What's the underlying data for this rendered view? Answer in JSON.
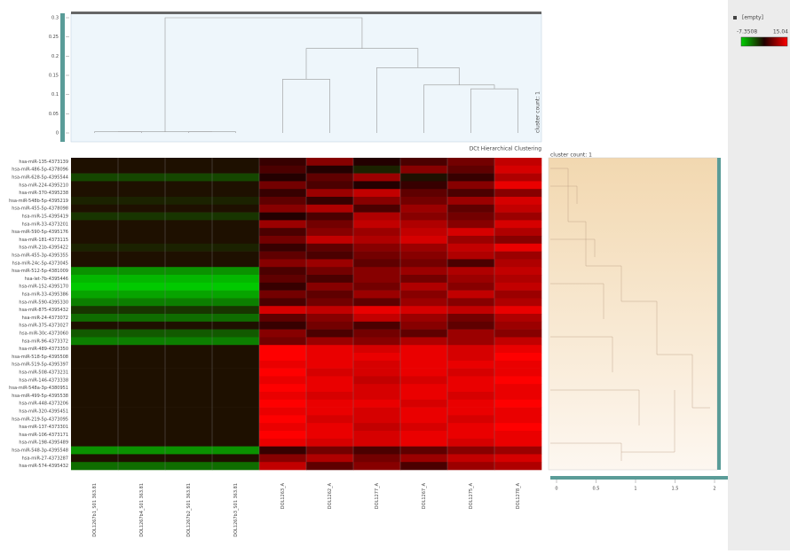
{
  "chart_data": {
    "type": "heatmap",
    "title": "DCt Hierarchical Clustering",
    "legend_label": "[empty]",
    "color_scale": {
      "min": -7.3508,
      "max": 15.04,
      "low_color": "#00d000",
      "mid_color": "#200000",
      "high_color": "#ff0000"
    },
    "columns": [
      "DOL1267b1_S01 363.81",
      "DOL1267b4_S01 363.81",
      "DOL1267b2_S01 363.81",
      "DOL1267b3_S01 363.81",
      "DOL1263_A",
      "DOL1262_A",
      "DOL1277_A",
      "DOL1267_A",
      "DOL1275_A",
      "DOL1278_A"
    ],
    "rows": [
      "hsa-miR-135-4373139",
      "hsa-miR-486-5p-4378096",
      "hsa-miR-628-5p-4395544",
      "hsa-miR-224-4395210",
      "hsa-miR-370-4395238",
      "hsa-miR-548b-5p-4395219",
      "hsa-miR-455-5p-4378098",
      "hsa-miR-15-4395419",
      "hsa-miR-33-4373201",
      "hsa-miR-590-5p-4395176",
      "hsa-miR-181-4373115",
      "hsa-miR-21b-4395422",
      "hsa-miR-455-3p-4395355",
      "hsa-miR-24c-5p-4373045",
      "hsa-miR-512-5p-4381009",
      "hsa-let-7b-4395446",
      "hsa-miR-152-4395170",
      "hsa-miR-33-4395386",
      "hsa-miR-590-4395330",
      "hsa-miR-875-4395432",
      "hsa-miR-24-4373072",
      "hsa-miR-375-4373027",
      "hsa-miR-30c-4373060",
      "hsa-miR-96-4373372",
      "hsa-miR-489-4373350",
      "hsa-miR-518-5p-4395508",
      "hsa-miR-519-5p-4395397",
      "hsa-miR-508-4373231",
      "hsa-miR-146-4373338",
      "hsa-miR-548a-3p-4380951",
      "hsa-miR-499-5p-4395538",
      "hsa-miR-448-4373206",
      "hsa-miR-320-4395451",
      "hsa-miR-219-5p-4373095",
      "hsa-miR-137-4373301",
      "hsa-miR-106-4373171",
      "hsa-miR-198-4395489",
      "hsa-miR-548-3p-4395548",
      "hsa-miR-27-4373287",
      "hsa-miR-574-4395432"
    ],
    "values": [
      [
        3,
        3,
        3,
        3,
        5,
        9,
        4,
        6,
        8,
        12
      ],
      [
        3,
        3,
        3,
        3,
        6,
        4,
        2,
        9,
        7,
        13
      ],
      [
        0,
        0,
        0,
        0,
        4,
        7,
        10,
        3,
        5,
        11
      ],
      [
        3,
        3,
        3,
        3,
        8,
        6,
        4,
        5,
        9,
        14
      ],
      [
        3,
        3,
        3,
        3,
        5,
        10,
        12,
        7,
        6,
        9
      ],
      [
        2,
        2,
        2,
        2,
        7,
        5,
        9,
        8,
        10,
        13
      ],
      [
        3,
        3,
        3,
        3,
        9,
        11,
        6,
        10,
        7,
        12
      ],
      [
        1,
        1,
        1,
        1,
        4,
        6,
        11,
        9,
        8,
        10
      ],
      [
        3,
        3,
        3,
        3,
        10,
        8,
        12,
        11,
        9,
        13
      ],
      [
        3,
        3,
        3,
        3,
        6,
        9,
        10,
        12,
        13,
        11
      ],
      [
        3,
        3,
        3,
        3,
        8,
        12,
        11,
        13,
        10,
        9
      ],
      [
        2,
        2,
        2,
        2,
        5,
        7,
        9,
        10,
        12,
        14
      ],
      [
        3,
        3,
        3,
        3,
        7,
        6,
        8,
        9,
        11,
        10
      ],
      [
        3,
        3,
        3,
        3,
        9,
        10,
        7,
        8,
        6,
        11
      ],
      [
        -4,
        -4,
        -4,
        -4,
        6,
        8,
        9,
        10,
        11,
        12
      ],
      [
        -6,
        -6,
        -6,
        -6,
        7,
        6,
        9,
        8,
        10,
        11
      ],
      [
        -7,
        -7,
        -7,
        -7,
        5,
        9,
        8,
        11,
        9,
        12
      ],
      [
        -5,
        -5,
        -5,
        -5,
        8,
        7,
        10,
        9,
        12,
        10
      ],
      [
        -3,
        -3,
        -3,
        -3,
        6,
        8,
        7,
        10,
        9,
        11
      ],
      [
        1,
        1,
        1,
        1,
        13,
        12,
        14,
        13,
        12,
        14
      ],
      [
        -2,
        -2,
        -2,
        -2,
        7,
        9,
        12,
        10,
        8,
        11
      ],
      [
        3,
        3,
        3,
        3,
        5,
        8,
        6,
        9,
        7,
        10
      ],
      [
        -1,
        -1,
        -1,
        -1,
        9,
        6,
        8,
        7,
        10,
        9
      ],
      [
        -3,
        -3,
        -3,
        -3,
        8,
        10,
        9,
        11,
        10,
        12
      ],
      [
        3,
        3,
        3,
        3,
        15,
        14,
        13,
        14,
        13,
        14
      ],
      [
        3,
        3,
        3,
        3,
        15,
        14,
        14,
        14,
        13,
        15
      ],
      [
        3,
        3,
        3,
        3,
        14,
        14,
        13,
        14,
        14,
        14
      ],
      [
        3,
        3,
        3,
        3,
        15,
        13,
        13,
        14,
        13,
        14
      ],
      [
        3,
        3,
        3,
        3,
        14,
        14,
        12,
        13,
        14,
        15
      ],
      [
        3,
        3,
        3,
        3,
        15,
        14,
        13,
        14,
        14,
        14
      ],
      [
        3,
        3,
        3,
        3,
        14,
        13,
        13,
        14,
        13,
        14
      ],
      [
        3,
        3,
        3,
        3,
        15,
        14,
        14,
        13,
        14,
        15
      ],
      [
        3,
        3,
        3,
        3,
        14,
        14,
        13,
        14,
        14,
        14
      ],
      [
        3,
        3,
        3,
        3,
        15,
        13,
        13,
        14,
        13,
        14
      ],
      [
        3,
        3,
        3,
        3,
        14,
        14,
        12,
        13,
        14,
        15
      ],
      [
        3,
        3,
        3,
        3,
        15,
        14,
        13,
        14,
        14,
        14
      ],
      [
        3,
        3,
        3,
        3,
        14,
        13,
        13,
        14,
        13,
        14
      ],
      [
        -4,
        -4,
        -4,
        -4,
        5,
        8,
        6,
        7,
        9,
        10
      ],
      [
        3,
        3,
        3,
        3,
        9,
        11,
        8,
        10,
        12,
        13
      ],
      [
        -2,
        -2,
        -2,
        -2,
        12,
        7,
        9,
        6,
        10,
        11
      ]
    ],
    "column_dendrogram": {
      "label": "cluster count: 1",
      "ylim": [
        0,
        0.3
      ],
      "yticks": [
        0,
        0.05,
        0.1,
        0.15,
        0.2,
        0.25,
        0.3
      ],
      "merges": [
        {
          "left": 0,
          "right": 1,
          "height": 0.003
        },
        {
          "left": 2,
          "right": 3,
          "height": 0.003
        },
        {
          "left": 10,
          "right": 11,
          "height": 0.003
        },
        {
          "left": 8,
          "right": 9,
          "height": 0.115
        },
        {
          "left": 7,
          "right": 13,
          "height": 0.125
        },
        {
          "left": 4,
          "right": 5,
          "height": 0.14
        },
        {
          "left": 6,
          "right": 14,
          "height": 0.17
        },
        {
          "left": 15,
          "right": 16,
          "height": 0.22
        },
        {
          "left": 12,
          "right": 17,
          "height": 0.3
        }
      ]
    },
    "row_dendrogram": {
      "label": "cluster count: 1",
      "xlim": [
        0,
        2
      ],
      "xticks": [
        0,
        0.5,
        1,
        1.5,
        2
      ]
    }
  }
}
